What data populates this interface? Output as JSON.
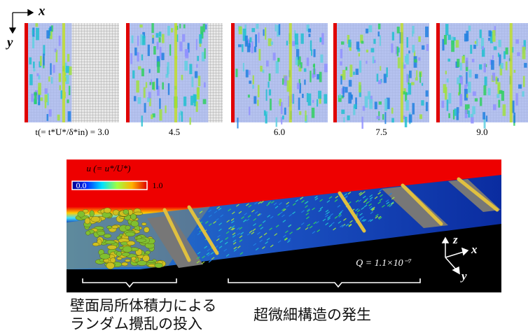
{
  "top": {
    "axis_x": "x",
    "axis_y": "y",
    "time_labels": [
      "t(= t*U*/δ*in) = 3.0",
      "4.5",
      "6.0",
      "7.5",
      "9.0"
    ]
  },
  "bottom": {
    "colorbar_label": "u (= u*/U*)",
    "colorbar_min": "0.0",
    "colorbar_max": "1.0",
    "q_label": "Q = 1.1×10⁻⁷",
    "axis_z": "z",
    "axis_x": "x",
    "axis_y": "y",
    "caption_left": [
      "壁面局所体積力による",
      "ランダム攪乱の投入"
    ],
    "caption_right": "超微細構造の発生"
  }
}
